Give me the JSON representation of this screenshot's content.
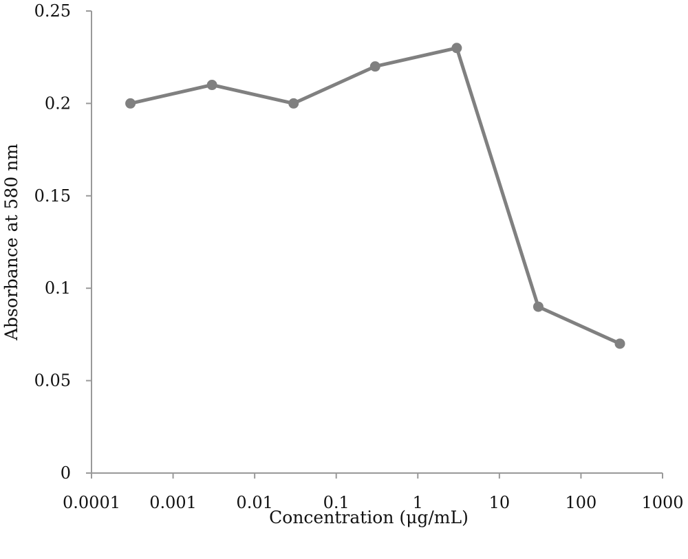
{
  "chart_data": {
    "type": "line",
    "title": "",
    "xlabel": "Concentration (μg/mL)",
    "ylabel": "Absorbance at 580 nm",
    "x_scale": "log",
    "xlim": [
      0.0001,
      1000
    ],
    "ylim": [
      0,
      0.25
    ],
    "x_tick_values": [
      0.0001,
      0.001,
      0.01,
      0.1,
      1,
      10,
      100,
      1000
    ],
    "x_tick_labels": [
      "0.0001",
      "0.001",
      "0.01",
      "0.1",
      "1",
      "10",
      "100",
      "1000"
    ],
    "y_tick_values": [
      0,
      0.05,
      0.1,
      0.15,
      0.2,
      0.25
    ],
    "y_tick_labels": [
      "0",
      "0.05",
      "0.1",
      "0.15",
      "0.2",
      "0.25"
    ],
    "grid": false,
    "legend": "none",
    "series": [
      {
        "color": "#808080",
        "x": [
          0.0003,
          0.003,
          0.03,
          0.3,
          3,
          30,
          300
        ],
        "y": [
          0.2,
          0.21,
          0.2,
          0.22,
          0.23,
          0.09,
          0.07
        ]
      }
    ],
    "axis_color": "#999999"
  }
}
